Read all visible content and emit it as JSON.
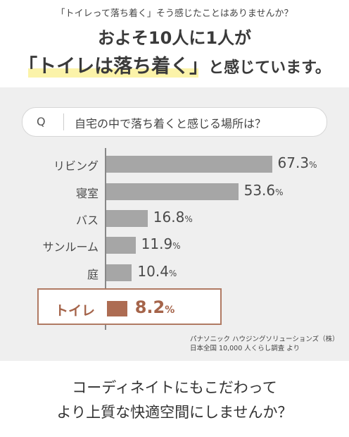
{
  "header": {
    "lead": "「トイレって落ち着く」そう感じたことはありませんか？",
    "line1": "およそ10人に1人が",
    "line2_emph": "「トイレは落ち着く」",
    "line2_rest": "と感じています。"
  },
  "question": {
    "marker": "Q",
    "text": "自宅の中で落ち着くと感じる場所は？"
  },
  "chart_data": {
    "type": "bar",
    "orientation": "horizontal",
    "unit": "%",
    "categories": [
      "リビング",
      "寝室",
      "バス",
      "サンルーム",
      "庭",
      "トイレ"
    ],
    "values": [
      67.3,
      53.6,
      16.8,
      11.9,
      10.4,
      8.2
    ],
    "value_labels": [
      "67.3",
      "53.6",
      "16.8",
      "11.9",
      "10.4",
      "8.2"
    ],
    "highlight_index": 5,
    "colors": {
      "bar": "#a6a6a6",
      "highlight": "#ad6c52"
    }
  },
  "source": {
    "line1": "パナソニック ハウジングソリューションズ（株）",
    "line2": "日本全国 10,000 人くらし調査 より"
  },
  "footer": {
    "line1": "コーディネイトにもこだわって",
    "line2": "より上質な快適空間にしませんか？"
  }
}
